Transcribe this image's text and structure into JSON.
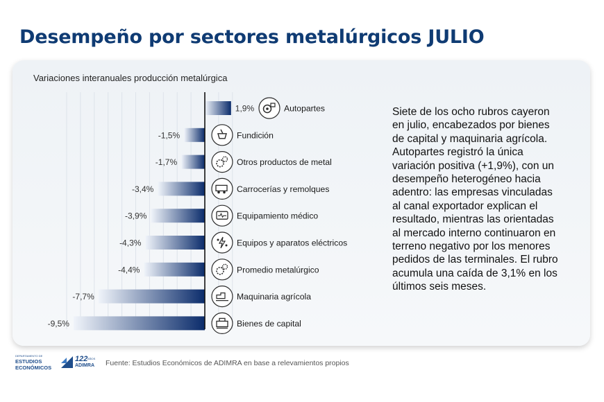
{
  "title": "Desempeño por sectores metalúrgicos JULIO",
  "chart_data": {
    "type": "bar",
    "orientation": "horizontal",
    "subtitle": "Variaciones interanuales producción metalúrgica",
    "categories": [
      "Autopartes",
      "Fundición",
      "Otros productos de metal",
      "Carrocerías y remolques",
      "Equipamiento médico",
      "Equipos y aparatos eléctricos",
      "Promedio metalúrgico",
      "Maquinaria agrícola",
      "Bienes de capital"
    ],
    "values": [
      1.9,
      -1.5,
      -1.7,
      -3.4,
      -3.9,
      -4.3,
      -4.4,
      -7.7,
      -9.5
    ],
    "value_labels": [
      "1,9%",
      "-1,5%",
      "-1,7%",
      "-3,4%",
      "-3,9%",
      "-4,3%",
      "-4,4%",
      "-7,7%",
      "-9,5%"
    ],
    "icons": [
      "car-parts-icon",
      "foundry-ladle-icon",
      "gears-icon",
      "trailer-icon",
      "medical-monitor-icon",
      "electrical-devices-icon",
      "gears-icon",
      "harvester-icon",
      "capital-goods-machine-icon"
    ],
    "xlim": [
      -10,
      2
    ],
    "grid": true,
    "colors": {
      "bar_dark": "#0b2c6b",
      "bar_light": "#f0f4fa",
      "axis": "#111111",
      "gridline": "#dde3ea"
    }
  },
  "commentary": "Siete de los ocho rubros cayeron en julio, encabezados por bienes de capital y maquinaria agrícola. Autopartes registró la única variación positiva (+1,9%), con un desempeño heterogéneo hacia adentro: las empresas vinculadas al canal exportador explican el resultado, mientras las orientadas al mercado interno continuaron en terreno negativo por los menores pedidos de las terminales. El rubro acumula una caída de 3,1% en los últimos seis meses.",
  "footer": {
    "logo1_small": "DEPARTAMENTO DE",
    "logo1_line1": "ESTUDIOS",
    "logo1_line2": "ECONÓMICOS",
    "logo2_number": "122",
    "logo2_years": "AÑOS",
    "logo2_name": "ADIMRA",
    "source": "Fuente: Estudios Económicos de ADIMRA en base a relevamientos propios"
  }
}
